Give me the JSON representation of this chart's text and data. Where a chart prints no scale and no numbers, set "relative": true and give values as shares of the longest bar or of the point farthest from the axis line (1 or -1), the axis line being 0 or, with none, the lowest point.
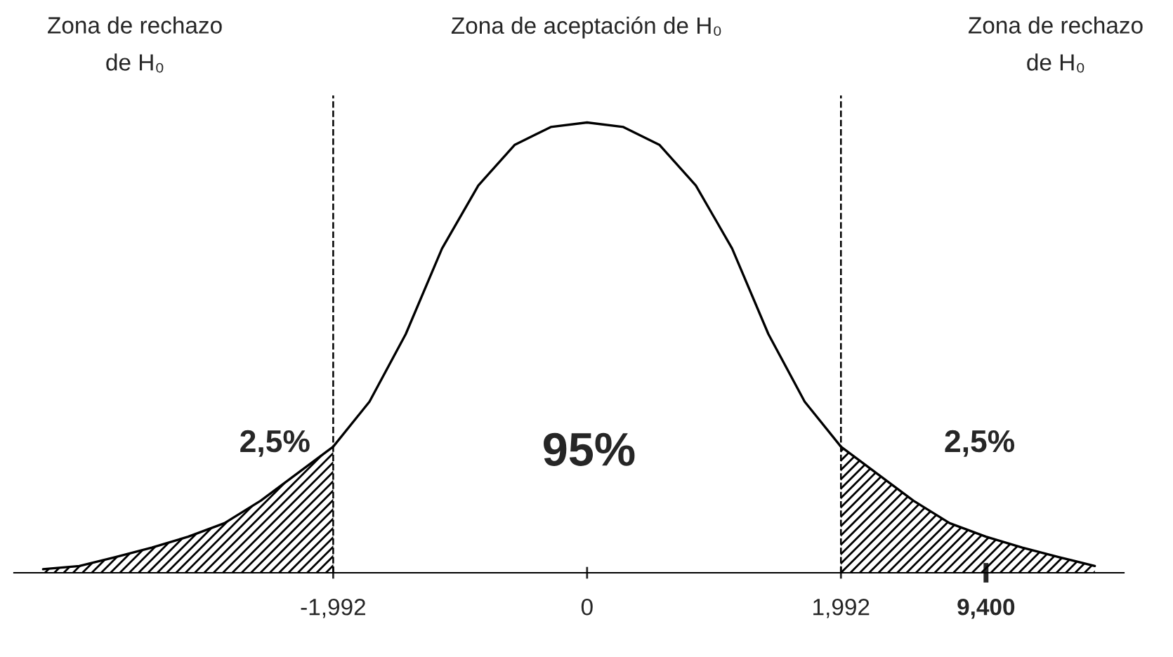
{
  "chart_data": {
    "type": "line",
    "relative": true,
    "categories": [
      null,
      null,
      null,
      null,
      null,
      null,
      null,
      null,
      "-1,992",
      null,
      null,
      null,
      null,
      null,
      null,
      "0",
      null,
      null,
      null,
      null,
      null,
      null,
      "1,992",
      null,
      null,
      null,
      "9,400",
      null,
      null,
      null
    ],
    "series": [
      {
        "color": "#000000",
        "values": [
          0.008,
          0.015,
          0.035,
          0.056,
          0.08,
          0.11,
          0.16,
          0.22,
          0.28,
          0.38,
          0.53,
          0.72,
          0.86,
          0.95,
          0.99,
          1.0,
          0.99,
          0.95,
          0.86,
          0.72,
          0.53,
          0.38,
          0.28,
          0.22,
          0.16,
          0.11,
          0.08,
          0.056,
          0.035,
          0.015
        ]
      },
      {
        "type": "area",
        "color": "#000000",
        "values": [
          0.008,
          0.015,
          0.035,
          0.056,
          0.08,
          0.11,
          0.16,
          0.22,
          0.28,
          null,
          null,
          null,
          null,
          null,
          null,
          null,
          null,
          null,
          null,
          null,
          null,
          null,
          null,
          null,
          null,
          null,
          null,
          null,
          null,
          null
        ]
      },
      {
        "type": "area",
        "color": "#000000",
        "values": [
          null,
          null,
          null,
          null,
          null,
          null,
          null,
          null,
          null,
          null,
          null,
          null,
          null,
          null,
          null,
          null,
          null,
          null,
          null,
          null,
          null,
          null,
          0.28,
          0.22,
          0.16,
          0.11,
          0.08,
          0.056,
          0.035,
          0.015
        ]
      }
    ],
    "tick_labels": "x",
    "grid": false,
    "legend": false,
    "marker": "none",
    "line_style": "solid",
    "ref_lines": [
      {
        "axis": "x",
        "value": "-1,992",
        "line_style": "dashed",
        "color": "#000000"
      },
      {
        "axis": "x",
        "value": "1,992",
        "line_style": "dashed",
        "color": "#000000"
      }
    ],
    "annotations": [
      "Zona de rechazo\nde H₀",
      "Zona de aceptación de H₀",
      "Zona de rechazo\nde H₀",
      "95%",
      "2,5%",
      "2,5%"
    ]
  }
}
